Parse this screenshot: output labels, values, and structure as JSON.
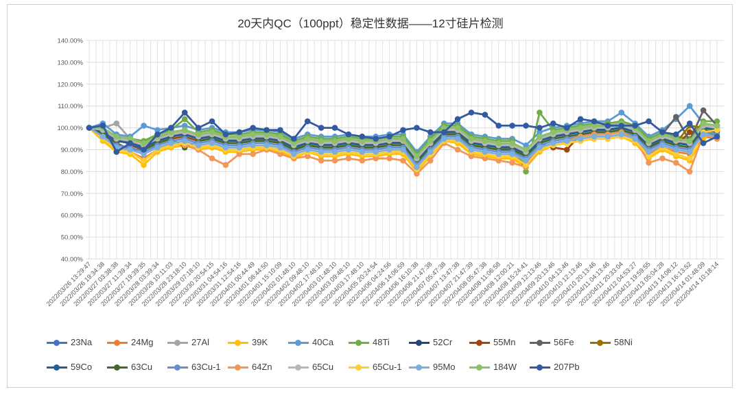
{
  "chart_data": {
    "type": "line",
    "title": "20天内QC（100ppt）稳定性数据——12寸硅片检测",
    "xlabel": "",
    "ylabel": "",
    "ylim": [
      0.4,
      1.4
    ],
    "yticks": [
      "40.00%",
      "50.00%",
      "60.00%",
      "70.00%",
      "80.00%",
      "90.00%",
      "100.00%",
      "110.00%",
      "120.00%",
      "130.00%",
      "140.00%"
    ],
    "grid": true,
    "legend": "bottom",
    "categories": [
      "2022/03/26 13:29:47",
      "2022/03/26 19:34:38",
      "2022/03/27 03:38:38",
      "2022/03/27 11:39:34",
      "2022/03/27 19:39:35",
      "2022/03/28 03:39:34",
      "2022/03/28 10:11:03",
      "2022/03/28 23:18:10",
      "2022/03/29 07:18:10",
      "2022/03/30 20:54:15",
      "2022/03/31 04:54:16",
      "2022/03/31 12:54:16",
      "2022/04/01 00:44:49",
      "2022/04/01 08:44:50",
      "2022/04/01 15:10:09",
      "2022/04/02 01:48:10",
      "2022/04/02 09:48:10",
      "2022/04/02 17:48:10",
      "2022/04/03 01:48:10",
      "2022/04/03 09:48:10",
      "2022/04/03 17:48:10",
      "2022/04/05 20:24:54",
      "2022/04/06 04:24:56",
      "2022/04/06 14:06:59",
      "2022/04/06 16:10:38",
      "2022/04/06 21:47:38",
      "2022/04/07 05:47:38",
      "2022/04/07 13:47:38",
      "2022/04/07 21:47:39",
      "2022/04/08 05:47:38",
      "2022/04/08 11:06:58",
      "2022/04/08 12:00:21",
      "2022/04/08 15:24:41",
      "2022/04/09 12:13:46",
      "2022/04/09 20:13:46",
      "2022/04/10 04:13:46",
      "2022/04/10 12:13:46",
      "2022/04/10 20:13:46",
      "2022/04/11 04:13:46",
      "2022/04/11 20:33:04",
      "2022/04/12 04:53:27",
      "2022/04/12 19:59:55",
      "2022/04/13 05:04:28",
      "2022/04/13 14:08:12",
      "2022/04/13 16:13:52",
      "2022/04/14 01:48:09",
      "2022/04/14 10:18:14"
    ],
    "series": [
      {
        "name": "23Na",
        "color": "#4472C4",
        "values": [
          100,
          99,
          95,
          94,
          92,
          95,
          97,
          98,
          96,
          97,
          95,
          95,
          96,
          96,
          95,
          92,
          94,
          93,
          93,
          94,
          93,
          93,
          94,
          94,
          86,
          93,
          99,
          99,
          94,
          93,
          92,
          92,
          89,
          95,
          97,
          98,
          99,
          100,
          100,
          101,
          99,
          93,
          96,
          94,
          93,
          101,
          100
        ]
      },
      {
        "name": "24Mg",
        "color": "#ED7D31",
        "values": [
          100,
          95,
          90,
          89,
          86,
          90,
          92,
          93,
          91,
          92,
          90,
          90,
          91,
          91,
          90,
          87,
          89,
          88,
          88,
          89,
          88,
          88,
          89,
          89,
          81,
          88,
          94,
          94,
          89,
          88,
          87,
          87,
          84,
          90,
          92,
          93,
          94,
          95,
          95,
          96,
          94,
          88,
          91,
          89,
          88,
          96,
          95
        ]
      },
      {
        "name": "27Al",
        "color": "#A5A5A5",
        "values": [
          100,
          100,
          102,
          95,
          93,
          96,
          98,
          99,
          97,
          98,
          96,
          96,
          97,
          97,
          96,
          93,
          95,
          94,
          94,
          95,
          94,
          94,
          95,
          95,
          87,
          94,
          100,
          100,
          95,
          94,
          93,
          93,
          90,
          96,
          98,
          99,
          100,
          101,
          101,
          102,
          100,
          94,
          97,
          95,
          94,
          102,
          101
        ]
      },
      {
        "name": "39K",
        "color": "#FFC000",
        "values": [
          100,
          94,
          89,
          88,
          83,
          89,
          91,
          92,
          90,
          91,
          89,
          89,
          90,
          90,
          89,
          86,
          89,
          87,
          87,
          88,
          87,
          87,
          88,
          88,
          80,
          87,
          94,
          93,
          88,
          87,
          86,
          86,
          82,
          89,
          92,
          93,
          94,
          95,
          95,
          96,
          93,
          86,
          90,
          87,
          85,
          95,
          100
        ]
      },
      {
        "name": "40Ca",
        "color": "#5B9BD5",
        "values": [
          100,
          102,
          97,
          96,
          101,
          99,
          100,
          101,
          99,
          100,
          98,
          98,
          99,
          99,
          98,
          95,
          97,
          96,
          96,
          97,
          96,
          96,
          97,
          97,
          89,
          96,
          102,
          102,
          97,
          96,
          95,
          95,
          92,
          98,
          100,
          101,
          102,
          103,
          103,
          107,
          102,
          96,
          99,
          104,
          110,
          102,
          101
        ]
      },
      {
        "name": "48Ti",
        "color": "#70AD47",
        "values": [
          100,
          99,
          96,
          95,
          94,
          97,
          99,
          104,
          98,
          99,
          97,
          97,
          98,
          98,
          97,
          94,
          96,
          95,
          95,
          96,
          95,
          95,
          96,
          96,
          88,
          95,
          101,
          101,
          96,
          95,
          94,
          94,
          80,
          107,
          99,
          100,
          101,
          102,
          102,
          103,
          101,
          95,
          98,
          96,
          95,
          103,
          103
        ]
      },
      {
        "name": "52Cr",
        "color": "#264478",
        "values": [
          100,
          98,
          95,
          93,
          92,
          96,
          97,
          97,
          96,
          96,
          95,
          94,
          96,
          95,
          95,
          92,
          93,
          93,
          92,
          94,
          92,
          93,
          94,
          93,
          86,
          92,
          99,
          98,
          94,
          92,
          92,
          91,
          89,
          94,
          97,
          97,
          99,
          99,
          100,
          100,
          99,
          93,
          95,
          94,
          92,
          100,
          99
        ]
      },
      {
        "name": "55Mn",
        "color": "#9E480E",
        "values": [
          100,
          97,
          96,
          92,
          90,
          93,
          95,
          96,
          94,
          95,
          93,
          93,
          94,
          94,
          93,
          90,
          92,
          91,
          91,
          92,
          91,
          91,
          92,
          92,
          84,
          91,
          97,
          97,
          92,
          91,
          90,
          90,
          87,
          93,
          91,
          90,
          97,
          98,
          98,
          99,
          97,
          91,
          94,
          92,
          98,
          99,
          96
        ]
      },
      {
        "name": "56Fe",
        "color": "#636363",
        "values": [
          100,
          100,
          96,
          95,
          93,
          96,
          98,
          99,
          97,
          98,
          96,
          96,
          97,
          97,
          96,
          93,
          95,
          94,
          94,
          95,
          94,
          94,
          95,
          95,
          87,
          94,
          100,
          100,
          95,
          94,
          93,
          93,
          90,
          96,
          98,
          99,
          100,
          101,
          101,
          102,
          100,
          94,
          97,
          105,
          94,
          108,
          101
        ]
      },
      {
        "name": "58Ni",
        "color": "#997300",
        "values": [
          100,
          98,
          94,
          93,
          91,
          94,
          96,
          97,
          95,
          96,
          94,
          94,
          95,
          95,
          94,
          91,
          93,
          92,
          92,
          93,
          92,
          92,
          93,
          93,
          85,
          92,
          98,
          98,
          93,
          92,
          91,
          91,
          88,
          94,
          96,
          97,
          98,
          99,
          99,
          100,
          98,
          92,
          95,
          93,
          101,
          100,
          99
        ]
      },
      {
        "name": "59Co",
        "color": "#255E91",
        "values": [
          100,
          98,
          94,
          93,
          91,
          94,
          96,
          97,
          95,
          96,
          94,
          94,
          95,
          95,
          94,
          91,
          93,
          92,
          92,
          93,
          92,
          92,
          93,
          93,
          85,
          92,
          98,
          98,
          93,
          92,
          91,
          91,
          88,
          94,
          96,
          97,
          98,
          99,
          99,
          100,
          98,
          92,
          95,
          93,
          92,
          100,
          99
        ]
      },
      {
        "name": "63Cu",
        "color": "#43682B",
        "values": [
          100,
          97,
          93,
          90,
          90,
          93,
          95,
          91,
          94,
          95,
          93,
          93,
          94,
          94,
          93,
          90,
          92,
          91,
          91,
          92,
          91,
          91,
          92,
          92,
          84,
          91,
          97,
          97,
          92,
          91,
          90,
          90,
          87,
          93,
          95,
          96,
          97,
          98,
          98,
          99,
          97,
          91,
          94,
          92,
          91,
          99,
          98
        ]
      },
      {
        "name": "63Cu-1",
        "color": "#698ED0",
        "values": [
          100,
          96,
          92,
          91,
          89,
          92,
          94,
          95,
          93,
          94,
          92,
          92,
          93,
          93,
          92,
          89,
          91,
          90,
          90,
          91,
          90,
          90,
          91,
          91,
          83,
          90,
          96,
          96,
          91,
          90,
          89,
          89,
          86,
          92,
          94,
          95,
          96,
          97,
          97,
          98,
          96,
          90,
          93,
          91,
          90,
          98,
          97
        ]
      },
      {
        "name": "64Zn",
        "color": "#F1975A",
        "values": [
          100,
          96,
          91,
          89,
          85,
          90,
          93,
          92,
          90,
          86,
          83,
          88,
          88,
          90,
          88,
          86,
          87,
          85,
          85,
          86,
          85,
          86,
          86,
          85,
          79,
          85,
          93,
          90,
          87,
          86,
          85,
          84,
          82,
          90,
          93,
          94,
          96,
          97,
          97,
          98,
          95,
          84,
          86,
          84,
          80,
          97,
          95
        ]
      },
      {
        "name": "65Cu",
        "color": "#B7B7B7",
        "values": [
          100,
          99,
          95,
          94,
          92,
          95,
          97,
          98,
          96,
          97,
          95,
          95,
          96,
          96,
          95,
          92,
          94,
          93,
          93,
          94,
          93,
          93,
          94,
          94,
          86,
          93,
          99,
          99,
          94,
          93,
          92,
          92,
          89,
          95,
          97,
          98,
          99,
          100,
          100,
          101,
          99,
          93,
          96,
          94,
          93,
          101,
          100
        ]
      },
      {
        "name": "65Cu-1",
        "color": "#FFCD33",
        "values": [
          100,
          95,
          90,
          89,
          85,
          90,
          92,
          93,
          91,
          92,
          90,
          90,
          91,
          91,
          90,
          87,
          89,
          88,
          88,
          89,
          88,
          88,
          89,
          89,
          81,
          88,
          94,
          94,
          89,
          88,
          87,
          87,
          83,
          90,
          92,
          93,
          94,
          95,
          95,
          96,
          94,
          87,
          91,
          88,
          86,
          98,
          99
        ]
      },
      {
        "name": "95Mo",
        "color": "#7CAFDD",
        "values": [
          100,
          96,
          91,
          90,
          88,
          91,
          93,
          94,
          92,
          93,
          91,
          91,
          92,
          92,
          91,
          88,
          90,
          89,
          89,
          90,
          89,
          89,
          90,
          90,
          82,
          89,
          95,
          95,
          90,
          89,
          88,
          88,
          85,
          91,
          93,
          94,
          95,
          96,
          96,
          97,
          95,
          89,
          92,
          90,
          89,
          97,
          96
        ]
      },
      {
        "name": "184W",
        "color": "#8CC168",
        "values": [
          100,
          100,
          96,
          95,
          93,
          96,
          98,
          99,
          97,
          98,
          96,
          96,
          97,
          97,
          96,
          93,
          95,
          94,
          94,
          95,
          94,
          94,
          95,
          95,
          87,
          94,
          100,
          100,
          95,
          94,
          93,
          93,
          90,
          96,
          98,
          99,
          100,
          101,
          101,
          102,
          100,
          94,
          97,
          95,
          94,
          102,
          101
        ]
      },
      {
        "name": "207Pb",
        "color": "#335AA1",
        "values": [
          100,
          101,
          89,
          93,
          90,
          97,
          100,
          107,
          100,
          103,
          97,
          98,
          100,
          99,
          99,
          95,
          103,
          100,
          100,
          97,
          96,
          95,
          96,
          99,
          100,
          98,
          98,
          104,
          107,
          106,
          101,
          101,
          101,
          100,
          102,
          100,
          104,
          103,
          101,
          101,
          101,
          103,
          98,
          97,
          102,
          93,
          96
        ]
      }
    ]
  }
}
